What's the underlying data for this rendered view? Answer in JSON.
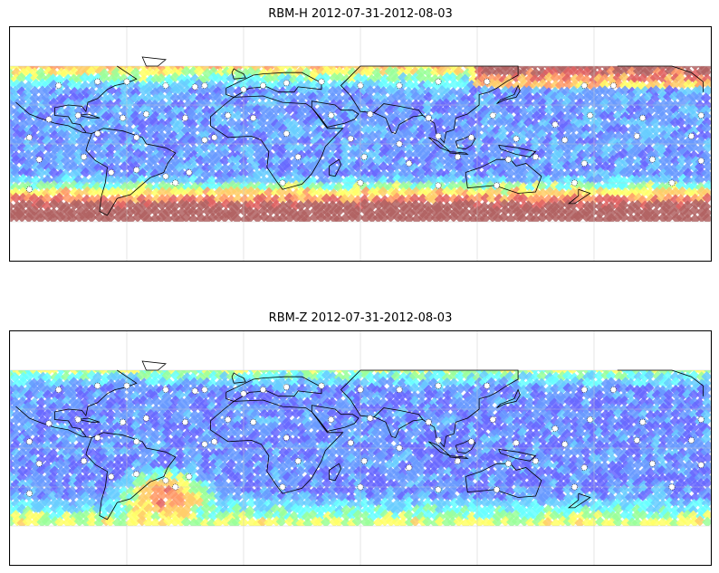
{
  "figure": {
    "panels": [
      {
        "title": "RBM-H 2012-07-31-2012-08-03",
        "field": "H",
        "colormap": [
          "#6666ff",
          "#6699ff",
          "#66ccff",
          "#66ffff",
          "#99ff99",
          "#ffff66",
          "#ffcc66",
          "#ff9966",
          "#e06060",
          "#b06060"
        ]
      },
      {
        "title": "RBM-Z 2012-07-31-2012-08-03",
        "field": "Z",
        "colormap": [
          "#6666ff",
          "#6699ff",
          "#66ccff",
          "#66ffff",
          "#99ff99",
          "#ffff66",
          "#ffcc66",
          "#ff9966",
          "#e06060",
          "#b06060"
        ]
      }
    ],
    "map": {
      "projection": "plate-carree",
      "central_longitude": 60,
      "data_coverage_lat": [
        -60,
        60
      ],
      "gridlines": true,
      "coastline_color": "#000000"
    },
    "station_markers": "white-dotted-circles"
  }
}
